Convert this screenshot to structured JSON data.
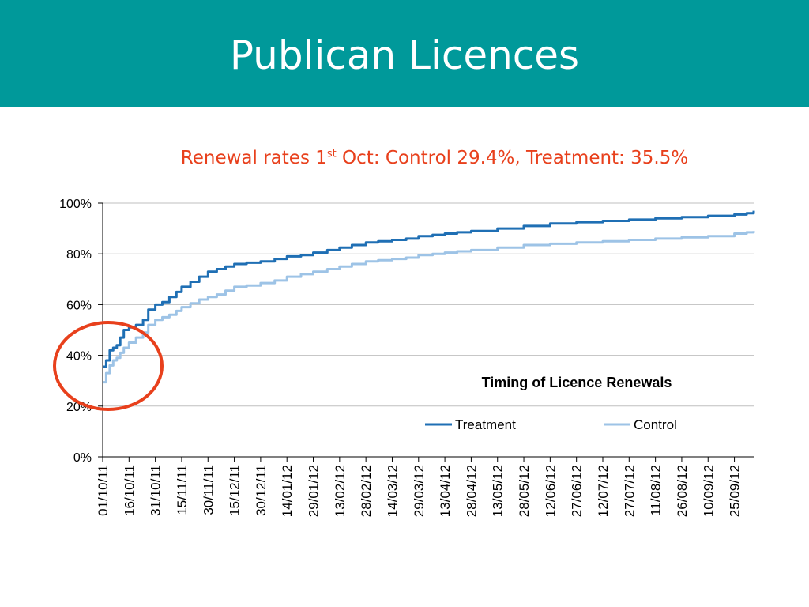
{
  "slide": {
    "title": "Publican Licences",
    "subtitle_before_sup": "Renewal rates 1",
    "subtitle_sup": "st",
    "subtitle_after_sup": " Oct: Control 29.4%, Treatment: 35.5%",
    "header_color": "#00999a",
    "subtitle_color": "#e8401c",
    "highlight_color": "#e8401c"
  },
  "chart_data": {
    "type": "line",
    "title": "Timing of Licence Renewals",
    "x_type": "date",
    "x_tick_labels": [
      "01/10/11",
      "16/10/11",
      "31/10/11",
      "15/11/11",
      "30/11/11",
      "15/12/11",
      "30/12/11",
      "14/01/12",
      "29/01/12",
      "13/02/12",
      "28/02/12",
      "14/03/12",
      "29/03/12",
      "13/04/12",
      "28/04/12",
      "13/05/12",
      "28/05/12",
      "12/06/12",
      "27/06/12",
      "12/07/12",
      "27/07/12",
      "11/08/12",
      "26/08/12",
      "10/09/12",
      "25/09/12"
    ],
    "xlim": [
      "2011-10-01",
      "2012-10-06"
    ],
    "ylim": [
      0,
      100
    ],
    "y_ticks": [
      0,
      20,
      40,
      60,
      80,
      100
    ],
    "y_tick_labels": [
      "0%",
      "20%",
      "40%",
      "60%",
      "80%",
      "100%"
    ],
    "grid": true,
    "legend_position": "inside-right",
    "series": [
      {
        "name": "Treatment",
        "color": "#1f6fb4",
        "points": [
          [
            "2011-10-01",
            35.5
          ],
          [
            "2011-10-03",
            38
          ],
          [
            "2011-10-05",
            42
          ],
          [
            "2011-10-07",
            43
          ],
          [
            "2011-10-09",
            44
          ],
          [
            "2011-10-11",
            47
          ],
          [
            "2011-10-13",
            50
          ],
          [
            "2011-10-16",
            51
          ],
          [
            "2011-10-20",
            52
          ],
          [
            "2011-10-24",
            54
          ],
          [
            "2011-10-27",
            58
          ],
          [
            "2011-10-31",
            60
          ],
          [
            "2011-11-04",
            61
          ],
          [
            "2011-11-08",
            63
          ],
          [
            "2011-11-12",
            65
          ],
          [
            "2011-11-15",
            67
          ],
          [
            "2011-11-20",
            69
          ],
          [
            "2011-11-25",
            71
          ],
          [
            "2011-11-30",
            73
          ],
          [
            "2011-12-05",
            74
          ],
          [
            "2011-12-10",
            75
          ],
          [
            "2011-12-15",
            76
          ],
          [
            "2011-12-22",
            76.5
          ],
          [
            "2011-12-30",
            77
          ],
          [
            "2012-01-07",
            78
          ],
          [
            "2012-01-14",
            79
          ],
          [
            "2012-01-22",
            79.5
          ],
          [
            "2012-01-29",
            80.5
          ],
          [
            "2012-02-06",
            81.5
          ],
          [
            "2012-02-13",
            82.5
          ],
          [
            "2012-02-20",
            83.5
          ],
          [
            "2012-02-28",
            84.5
          ],
          [
            "2012-03-06",
            85
          ],
          [
            "2012-03-14",
            85.5
          ],
          [
            "2012-03-22",
            86
          ],
          [
            "2012-03-29",
            87
          ],
          [
            "2012-04-06",
            87.5
          ],
          [
            "2012-04-13",
            88
          ],
          [
            "2012-04-20",
            88.5
          ],
          [
            "2012-04-28",
            89
          ],
          [
            "2012-05-13",
            90
          ],
          [
            "2012-05-28",
            91
          ],
          [
            "2012-06-12",
            92
          ],
          [
            "2012-06-27",
            92.5
          ],
          [
            "2012-07-12",
            93
          ],
          [
            "2012-07-27",
            93.5
          ],
          [
            "2012-08-11",
            94
          ],
          [
            "2012-08-26",
            94.5
          ],
          [
            "2012-09-10",
            95
          ],
          [
            "2012-09-25",
            95.5
          ],
          [
            "2012-10-02",
            96
          ],
          [
            "2012-10-06",
            97
          ]
        ]
      },
      {
        "name": "Control",
        "color": "#9dc3e6",
        "points": [
          [
            "2011-10-01",
            29.4
          ],
          [
            "2011-10-03",
            33
          ],
          [
            "2011-10-05",
            36
          ],
          [
            "2011-10-07",
            38
          ],
          [
            "2011-10-09",
            39
          ],
          [
            "2011-10-11",
            41
          ],
          [
            "2011-10-13",
            43
          ],
          [
            "2011-10-16",
            45
          ],
          [
            "2011-10-20",
            47
          ],
          [
            "2011-10-24",
            49
          ],
          [
            "2011-10-27",
            52
          ],
          [
            "2011-10-31",
            54
          ],
          [
            "2011-11-04",
            55
          ],
          [
            "2011-11-08",
            56
          ],
          [
            "2011-11-12",
            57.5
          ],
          [
            "2011-11-15",
            59
          ],
          [
            "2011-11-20",
            60.5
          ],
          [
            "2011-11-25",
            62
          ],
          [
            "2011-11-30",
            63
          ],
          [
            "2011-12-05",
            64
          ],
          [
            "2011-12-10",
            65.5
          ],
          [
            "2011-12-15",
            67
          ],
          [
            "2011-12-22",
            67.5
          ],
          [
            "2011-12-30",
            68.5
          ],
          [
            "2012-01-07",
            69.5
          ],
          [
            "2012-01-14",
            71
          ],
          [
            "2012-01-22",
            72
          ],
          [
            "2012-01-29",
            73
          ],
          [
            "2012-02-06",
            74
          ],
          [
            "2012-02-13",
            75
          ],
          [
            "2012-02-20",
            76
          ],
          [
            "2012-02-28",
            77
          ],
          [
            "2012-03-06",
            77.5
          ],
          [
            "2012-03-14",
            78
          ],
          [
            "2012-03-22",
            78.5
          ],
          [
            "2012-03-29",
            79.5
          ],
          [
            "2012-04-06",
            80
          ],
          [
            "2012-04-13",
            80.5
          ],
          [
            "2012-04-20",
            81
          ],
          [
            "2012-04-28",
            81.5
          ],
          [
            "2012-05-13",
            82.5
          ],
          [
            "2012-05-28",
            83.5
          ],
          [
            "2012-06-12",
            84
          ],
          [
            "2012-06-27",
            84.5
          ],
          [
            "2012-07-12",
            85
          ],
          [
            "2012-07-27",
            85.5
          ],
          [
            "2012-08-11",
            86
          ],
          [
            "2012-08-26",
            86.5
          ],
          [
            "2012-09-10",
            87
          ],
          [
            "2012-09-25",
            88
          ],
          [
            "2012-10-02",
            88.5
          ],
          [
            "2012-10-06",
            89
          ]
        ]
      }
    ]
  }
}
